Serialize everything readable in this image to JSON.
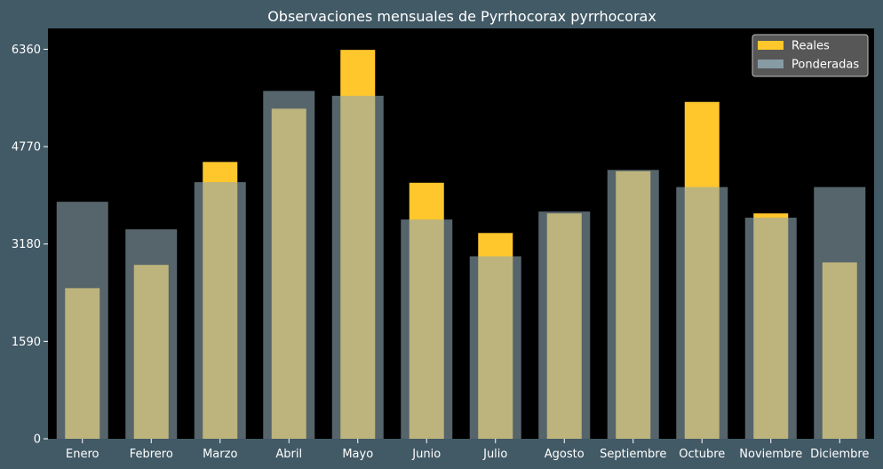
{
  "chart_data": {
    "type": "bar",
    "title": "Observaciones mensuales de Pyrrhocorax pyrrhocorax",
    "xlabel": "",
    "ylabel": "",
    "categories": [
      "Enero",
      "Febrero",
      "Marzo",
      "Abril",
      "Mayo",
      "Junio",
      "Julio",
      "Agosto",
      "Septiembre",
      "Octubre",
      "Noviembre",
      "Diciembre"
    ],
    "series": [
      {
        "name": "Reales",
        "color": "#ffc72c",
        "values": [
          2460,
          2840,
          4520,
          5390,
          6350,
          4180,
          3360,
          3680,
          4370,
          5500,
          3680,
          2880
        ]
      },
      {
        "name": "Ponderadas",
        "color": "#d4cfa0",
        "values": [
          3870,
          3420,
          4190,
          5680,
          5600,
          3580,
          2980,
          3710,
          4390,
          4110,
          3610,
          4110
        ]
      }
    ],
    "yticks": [
      0,
      1590,
      3180,
      4770,
      6360
    ],
    "ylim": [
      0,
      6700
    ],
    "grid": false,
    "legend_position": "top-right",
    "plot_background": "#000000",
    "figure_background": "#425a66"
  }
}
